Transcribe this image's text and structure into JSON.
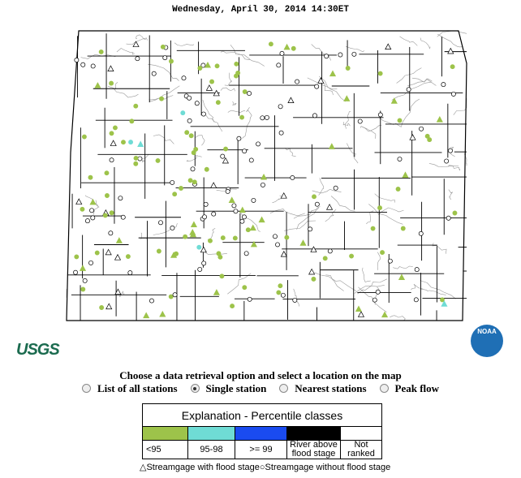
{
  "header": {
    "timestamp": "Wednesday, April 30, 2014 14:30ET"
  },
  "logos": {
    "usgs": "USGS",
    "noaa": "NOAA"
  },
  "controls": {
    "prompt": "Choose a data retrieval option and select a location on the map",
    "options": [
      "List of all stations",
      "Single station",
      "Nearest stations",
      "Peak flow"
    ],
    "selected_option": 1
  },
  "legend": {
    "title": "Explanation - Percentile classes",
    "classes": [
      {
        "label": "<95",
        "color": "#9dc34a"
      },
      {
        "label": "95-98",
        "color": "#6fdcd5"
      },
      {
        "label": ">= 99",
        "color": "#1a4bf0"
      },
      {
        "label": "River above flood stage",
        "color": "#000000"
      },
      {
        "label": "Not ranked",
        "color": "#ffffff"
      }
    ],
    "symbols": [
      "Streamgage with flood stage",
      "Streamgage without flood stage"
    ]
  }
}
